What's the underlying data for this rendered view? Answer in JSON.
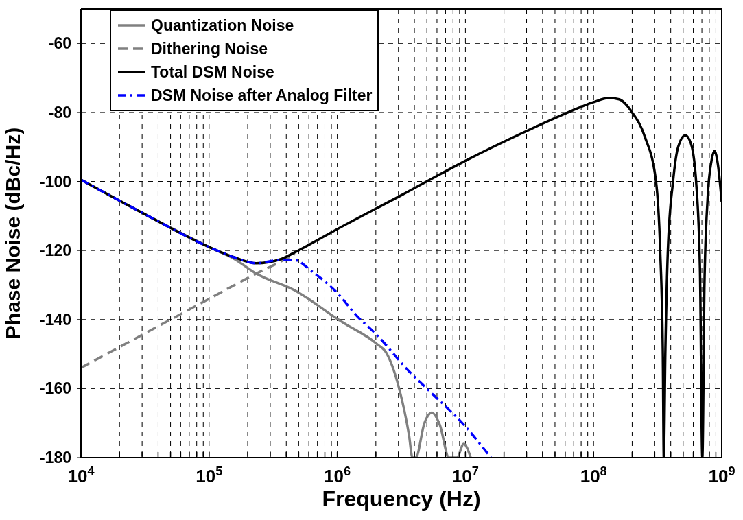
{
  "chart_data": {
    "type": "line",
    "xlabel": "Frequency (Hz)",
    "ylabel": "Phase Noise (dBc/Hz)",
    "log": "x",
    "grid": true,
    "legend": "top left",
    "xlim": [
      10000,
      1000000000
    ],
    "ylim": [
      -180,
      -50
    ],
    "yticks": [
      -180,
      -160,
      -140,
      -120,
      -100,
      -80,
      -60
    ],
    "xticks": [
      {
        "value": 10000,
        "label": "10$^{4}$"
      },
      {
        "value": 20000,
        "label": null
      },
      {
        "value": 30000,
        "label": null
      },
      {
        "value": 40000,
        "label": null
      },
      {
        "value": 50000,
        "label": null
      },
      {
        "value": 60000,
        "label": null
      },
      {
        "value": 70000,
        "label": null
      },
      {
        "value": 80000,
        "label": null
      },
      {
        "value": 90000,
        "label": null
      },
      {
        "value": 100000,
        "label": "10$^{5}$"
      },
      {
        "value": 200000,
        "label": null
      },
      {
        "value": 300000,
        "label": null
      },
      {
        "value": 400000,
        "label": null
      },
      {
        "value": 500000,
        "label": null
      },
      {
        "value": 600000,
        "label": null
      },
      {
        "value": 700000,
        "label": null
      },
      {
        "value": 800000,
        "label": null
      },
      {
        "value": 900000,
        "label": null
      },
      {
        "value": 1000000,
        "label": "10$^{6}$"
      },
      {
        "value": 2000000,
        "label": null
      },
      {
        "value": 3000000,
        "label": null
      },
      {
        "value": 4000000,
        "label": null
      },
      {
        "value": 5000000,
        "label": null
      },
      {
        "value": 6000000,
        "label": null
      },
      {
        "value": 7000000,
        "label": null
      },
      {
        "value": 8000000,
        "label": null
      },
      {
        "value": 9000000,
        "label": null
      },
      {
        "value": 10000000,
        "label": "10$^{7}$"
      },
      {
        "value": 20000000,
        "label": null
      },
      {
        "value": 30000000,
        "label": null
      },
      {
        "value": 40000000,
        "label": null
      },
      {
        "value": 50000000,
        "label": null
      },
      {
        "value": 60000000,
        "label": null
      },
      {
        "value": 70000000,
        "label": null
      },
      {
        "value": 80000000,
        "label": null
      },
      {
        "value": 90000000,
        "label": null
      },
      {
        "value": 100000000,
        "label": "10$^{8}$"
      },
      {
        "value": 200000000,
        "label": null
      },
      {
        "value": 300000000,
        "label": null
      },
      {
        "value": 400000000,
        "label": null
      },
      {
        "value": 500000000,
        "label": null
      },
      {
        "value": 600000000,
        "label": null
      },
      {
        "value": 700000000,
        "label": null
      },
      {
        "value": 800000000,
        "label": null
      },
      {
        "value": 900000000,
        "label": null
      },
      {
        "value": 1000000000,
        "label": "10$^{9}$"
      }
    ],
    "series": [
      {
        "name": "Quantization Noise",
        "color": "#808080",
        "line_style": "solid",
        "x": [
          10000.0,
          31600.0,
          100000.0,
          158000.0,
          233000.0,
          468000.0,
          1000000.0,
          1100000.0,
          2040000.0,
          2420000.0,
          3020000.0,
          3630000.0,
          3860000.0,
          4100000.0,
          4790000.0,
          5470000.0,
          6310000.0,
          7450000.0,
          8590000.0,
          9700000.0,
          11000000.0
        ],
        "values": [
          -99.5,
          -109.5,
          -119,
          -122.5,
          -126.7,
          -131.6,
          -139.8,
          -140.8,
          -147.1,
          -149.7,
          -159.6,
          -173.5,
          -180,
          -180,
          -170,
          -167,
          -170.5,
          -180,
          -180,
          -176,
          -180
        ]
      },
      {
        "name": "Dithering Noise",
        "color": "#808080",
        "line_style": "dashed",
        "x": [
          10000.0,
          31600.0,
          100000.0,
          233000.0,
          363000.0,
          468000.0
        ],
        "values": [
          -154,
          -144,
          -134,
          -126.7,
          -123.2,
          -121
        ]
      },
      {
        "name": "Total DSM Noise",
        "color": "#000000",
        "line_style": "solid",
        "x": [
          10000.0,
          31600.0,
          100000.0,
          158000.0,
          233000.0,
          363000.0,
          468000.0,
          1000000.0,
          3160000.0,
          10000000.0,
          31600000.0,
          63100000.0,
          100000000.0,
          132000000.0,
          158000000.0,
          200000000.0,
          251000000.0,
          307000000.0,
          331000000.0,
          347000000.0,
          353000000.0,
          363000000.0,
          380000000.0,
          417000000.0,
          457000000.0,
          520000000.0,
          575000000.0,
          631000000.0,
          676000000.0,
          706000000.0,
          733000000.0,
          776000000.0,
          832000000.0,
          879000000.0,
          933000000.0,
          1000000000.0
        ],
        "values": [
          -99.5,
          -109.5,
          -119,
          -122,
          -123.7,
          -122.5,
          -120.5,
          -113.8,
          -104,
          -94,
          -85,
          -80,
          -77,
          -75.8,
          -76.2,
          -80,
          -87,
          -100,
          -120,
          -150,
          -180,
          -150,
          -120,
          -100,
          -90,
          -86.6,
          -89,
          -100,
          -125,
          -180,
          -130,
          -105,
          -94,
          -91.2,
          -95,
          -106
        ]
      },
      {
        "name": "DSM Noise after Analog Filter",
        "color": "#0000ff",
        "line_style": "dashdot",
        "x": [
          10000.0,
          31600.0,
          100000.0,
          158000.0,
          233000.0,
          363000.0,
          468000.0,
          631000.0,
          1000000.0,
          1410000.0,
          2040000.0,
          3630000.0,
          5330000.0,
          10000000.0,
          15800000.0
        ],
        "values": [
          -99.5,
          -109.5,
          -119,
          -122,
          -123.7,
          -122.7,
          -122.8,
          -126,
          -132.3,
          -138.8,
          -144.5,
          -155,
          -161,
          -171,
          -180
        ]
      }
    ]
  }
}
